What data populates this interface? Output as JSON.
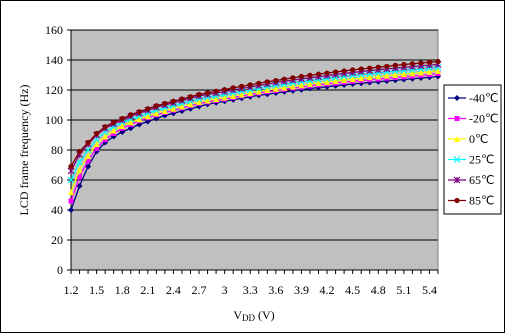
{
  "chart_data": {
    "type": "line",
    "title": "",
    "xlabel": "VDD (V)",
    "ylabel": "LCD frame frequency (Hz)",
    "xlabel_main": "V",
    "xlabel_sub": "DD",
    "xlabel_unit": " (V)",
    "xlim": [
      1.2,
      5.5
    ],
    "ylim": [
      0,
      160
    ],
    "x_tick_labels": [
      "1.2",
      "1.5",
      "1.8",
      "2.1",
      "2.4",
      "2.7",
      "3",
      "3.3",
      "3.6",
      "3.9",
      "4.2",
      "4.5",
      "4.8",
      "5.1",
      "5.4"
    ],
    "y_tick_labels": [
      "0",
      "20",
      "40",
      "60",
      "80",
      "100",
      "120",
      "140",
      "160"
    ],
    "grid": "horizontal",
    "legend_position": "right",
    "plot_background": "#c0c0c0",
    "x": [
      1.2,
      1.3,
      1.4,
      1.5,
      1.6,
      1.7,
      1.8,
      1.9,
      2.0,
      2.1,
      2.2,
      2.3,
      2.4,
      2.5,
      2.6,
      2.7,
      2.8,
      2.9,
      3.0,
      3.1,
      3.2,
      3.3,
      3.4,
      3.5,
      3.6,
      3.7,
      3.8,
      3.9,
      4.0,
      4.1,
      4.2,
      4.3,
      4.4,
      4.5,
      4.6,
      4.7,
      4.8,
      4.9,
      5.0,
      5.1,
      5.2,
      5.3,
      5.4,
      5.5
    ],
    "series": [
      {
        "name": "-40℃",
        "color": "#000080",
        "marker": "diamond",
        "values": [
          40,
          56,
          69,
          79,
          85,
          89,
          92,
          94.5,
          97,
          99,
          101,
          103,
          104.5,
          106,
          107.5,
          109,
          110.5,
          111.5,
          112.5,
          113.5,
          114.5,
          115.5,
          116.5,
          117.2,
          118,
          118.8,
          119.5,
          120.2,
          121,
          121.6,
          122.2,
          122.8,
          123.4,
          124,
          124.5,
          125,
          125.5,
          126,
          126.5,
          127,
          127.5,
          128,
          128.5,
          129
        ]
      },
      {
        "name": "-20℃",
        "color": "#ff00ff",
        "marker": "square",
        "values": [
          46,
          62,
          73,
          81,
          87,
          91,
          94.5,
          97,
          99.5,
          101.5,
          103.5,
          105,
          106.5,
          108,
          109.5,
          111,
          112,
          113,
          114,
          115,
          116,
          117,
          118,
          118.8,
          119.6,
          120.4,
          121.2,
          122,
          122.7,
          123.4,
          124,
          124.6,
          125.2,
          125.8,
          126.3,
          126.8,
          127.3,
          127.8,
          128.3,
          128.8,
          129.3,
          129.8,
          130.3,
          131
        ]
      },
      {
        "name": "0℃",
        "color": "#ffff00",
        "marker": "triangle",
        "values": [
          52,
          67,
          76,
          84,
          89,
          93,
          96,
          98.5,
          100.5,
          102.5,
          104.5,
          106,
          107.5,
          109,
          110.5,
          112,
          113,
          114,
          115,
          116,
          117,
          118,
          119,
          120,
          120.8,
          121.6,
          122.4,
          123.2,
          124,
          124.7,
          125.4,
          126,
          126.7,
          127.3,
          127.9,
          128.5,
          129,
          129.6,
          130.1,
          130.6,
          131.1,
          131.6,
          132.1,
          132.7
        ]
      },
      {
        "name": "25℃",
        "color": "#00ffff",
        "marker": "x",
        "values": [
          60,
          72,
          80,
          87,
          92,
          95.5,
          98.5,
          100.5,
          102.5,
          104.5,
          106.5,
          108,
          109.5,
          111,
          112.5,
          114,
          115,
          116,
          117,
          118,
          119,
          120,
          121,
          122,
          123,
          123.8,
          124.6,
          125.4,
          126.2,
          126.9,
          127.6,
          128.3,
          129,
          129.6,
          130.2,
          130.8,
          131.4,
          132,
          132.5,
          133,
          133.5,
          134,
          134.5,
          135
        ]
      },
      {
        "name": "65℃",
        "color": "#800080",
        "marker": "star",
        "values": [
          66,
          77,
          84,
          90,
          94.5,
          97.5,
          100,
          102.5,
          104.5,
          106.5,
          108.5,
          110,
          111.5,
          113,
          114.5,
          116,
          117,
          118,
          119,
          120,
          121,
          122,
          123,
          124,
          125,
          125.8,
          126.6,
          127.4,
          128.2,
          128.9,
          129.6,
          130.3,
          131,
          131.7,
          132.3,
          132.9,
          133.5,
          134.1,
          134.6,
          135.1,
          135.6,
          136.1,
          136.6,
          137
        ]
      },
      {
        "name": "85℃",
        "color": "#800000",
        "marker": "circle",
        "values": [
          69,
          79,
          85,
          91,
          95.5,
          98.5,
          101,
          103.5,
          105.5,
          107.5,
          109.5,
          111,
          112.5,
          114,
          115.5,
          117,
          118,
          119.2,
          120.3,
          121.4,
          122.4,
          123.4,
          124.4,
          125.4,
          126.3,
          127.2,
          128.1,
          129,
          129.8,
          130.6,
          131.3,
          132,
          132.7,
          133.4,
          134,
          134.6,
          135.2,
          135.8,
          136.4,
          137,
          137.5,
          138,
          138.5,
          139
        ]
      }
    ]
  }
}
